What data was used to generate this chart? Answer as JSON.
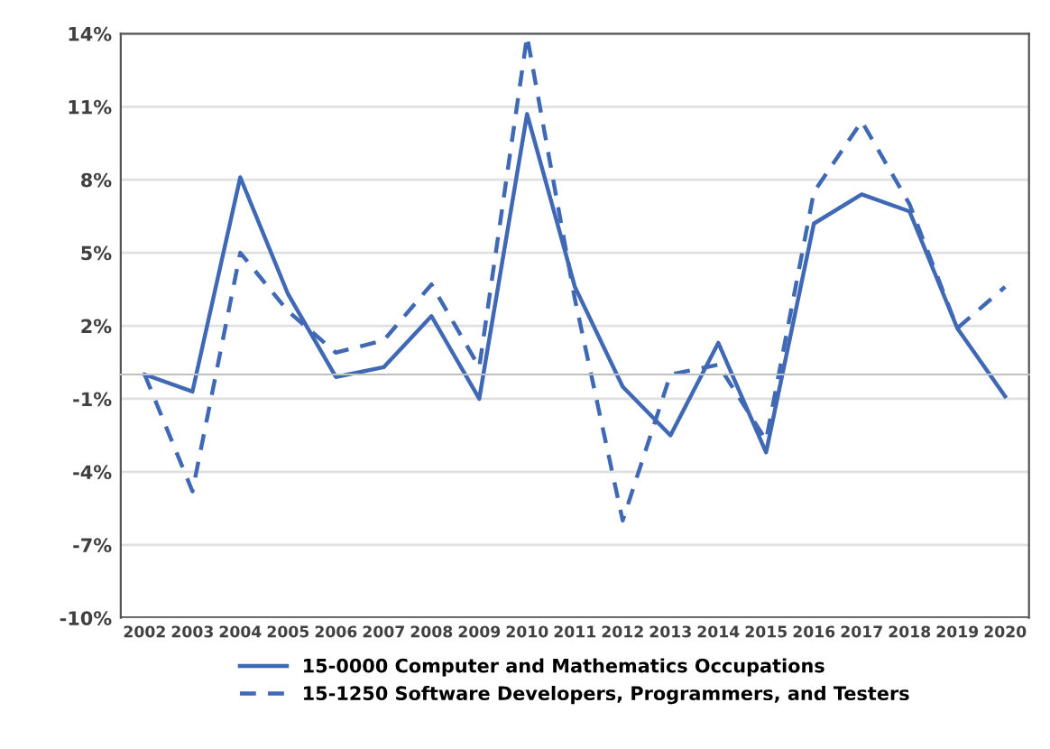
{
  "chart_data": {
    "type": "line",
    "categories": [
      "2002",
      "2003",
      "2004",
      "2005",
      "2006",
      "2007",
      "2008",
      "2009",
      "2010",
      "2011",
      "2012",
      "2013",
      "2014",
      "2015",
      "2016",
      "2017",
      "2018",
      "2019",
      "2020"
    ],
    "series": [
      {
        "name": "15-0000 Computer and Mathematics Occupations",
        "color": "#3f68b5",
        "line_style": "solid",
        "values": [
          0.0,
          -0.7,
          8.1,
          3.3,
          -0.1,
          0.3,
          2.4,
          -1.0,
          10.7,
          3.6,
          -0.5,
          -2.5,
          1.3,
          -3.2,
          6.2,
          7.4,
          6.7,
          1.9,
          -0.9
        ]
      },
      {
        "name": "15-1250 Software Developers, Programmers, and Testers",
        "color": "#3f68b5",
        "line_style": "dashed",
        "values": [
          0.0,
          -4.8,
          5.0,
          2.6,
          0.9,
          1.4,
          3.7,
          0.3,
          13.9,
          3.1,
          -6.0,
          0.0,
          0.4,
          -2.7,
          7.5,
          10.4,
          7.0,
          1.9,
          3.6
        ]
      }
    ],
    "ylim": [
      -10,
      14
    ],
    "yticks": [
      {
        "value": 14,
        "label": "14%"
      },
      {
        "value": 11,
        "label": "11%"
      },
      {
        "value": 8,
        "label": "8%"
      },
      {
        "value": 5,
        "label": "5%"
      },
      {
        "value": 2,
        "label": "2%"
      },
      {
        "value": -1,
        "label": "-1%"
      },
      {
        "value": -4,
        "label": "-4%"
      },
      {
        "value": -7,
        "label": "-7%"
      },
      {
        "value": -10,
        "label": "-10%"
      }
    ],
    "grid": "y",
    "legend": "bottom",
    "marker": "none"
  }
}
